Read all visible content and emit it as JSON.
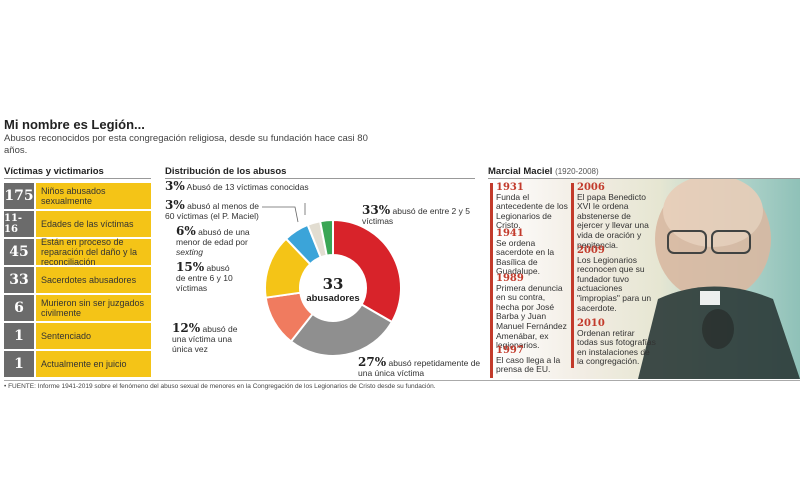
{
  "title": "Mi nombre es Legión...",
  "subtitle": "Abusos reconocidos por esta congregación religiosa, desde su fundación hace casi 80 años.",
  "headers": {
    "victims": "Víctimas y victimarios",
    "distribution": "Distribución de los abusos",
    "maciel_name": "Marcial Maciel",
    "maciel_years": "(1920-2008)"
  },
  "victims": [
    {
      "num": "175",
      "label": "Niños abusados sexualmente"
    },
    {
      "num": "11-16",
      "label": "Edades de las víctimas"
    },
    {
      "num": "45",
      "label": "Están en proceso de reparación del daño y la reconciliación"
    },
    {
      "num": "33",
      "label": "Sacerdotes abusadores"
    },
    {
      "num": "6",
      "label": "Murieron sin ser juzgados civilmente"
    },
    {
      "num": "1",
      "label": "Sentenciado"
    },
    {
      "num": "1",
      "label": "Actualmente en juicio"
    }
  ],
  "chart_data": {
    "type": "pie",
    "center_value": "33",
    "center_label": "abusadores",
    "slices": [
      {
        "count": 11,
        "pct": "33%",
        "text": "abusó de entre 2 y 5 víctimas",
        "color": "#d8232a"
      },
      {
        "count": 9,
        "pct": "27%",
        "text": "abusó repetidamente de una única víctima",
        "color": "#8f8f8f"
      },
      {
        "count": 4,
        "pct": "12%",
        "text": "abusó de una víctima una única vez",
        "color": "#f07b5f"
      },
      {
        "count": 5,
        "pct": "15%",
        "text": "abusó de entre 6 y 10 víctimas",
        "color": "#f4c417"
      },
      {
        "count": 2,
        "pct": "6%",
        "text": "abusó de una menor de edad por",
        "text_em": "sexting",
        "color": "#3ba4d9"
      },
      {
        "count": 1,
        "pct": "3%",
        "text": "abusó al menos de 60 víctimas (el P. Maciel)",
        "color": "#e2ddd1"
      },
      {
        "count": 1,
        "pct": "3%",
        "text": "Abusó de 13 víctimas conocidas",
        "color": "#3aa655"
      }
    ]
  },
  "timeline_left": [
    {
      "year": "1931",
      "text": "Funda el antecedente de los Legionarios de Cristo."
    },
    {
      "year": "1941",
      "text": "Se ordena sacerdote en la Basílica de Guadalupe."
    },
    {
      "year": "1989",
      "text": "Primera denuncia en su contra, hecha por José Barba y Juan Manuel Fernández Amenábar, ex legionarios."
    },
    {
      "year": "1997",
      "text": "El caso llega a la prensa de EU."
    }
  ],
  "timeline_right": [
    {
      "year": "2006",
      "text": "El papa Benedicto XVI le ordena abstenerse de ejercer y llevar una vida de oración y penitencia."
    },
    {
      "year": "2009",
      "text": "Los Legionarios reconocen que su fundador tuvo actuaciones \"impropias\" para un sacerdote."
    },
    {
      "year": "2010",
      "text": "Ordenan retirar todas sus fotografías en instalaciones de la congregación."
    }
  ],
  "footnote": "• FUENTE: Informe 1941-2019 sobre el fenómeno del abuso sexual de menores en la Congregación de los Legionarios de Cristo desde su fundación."
}
